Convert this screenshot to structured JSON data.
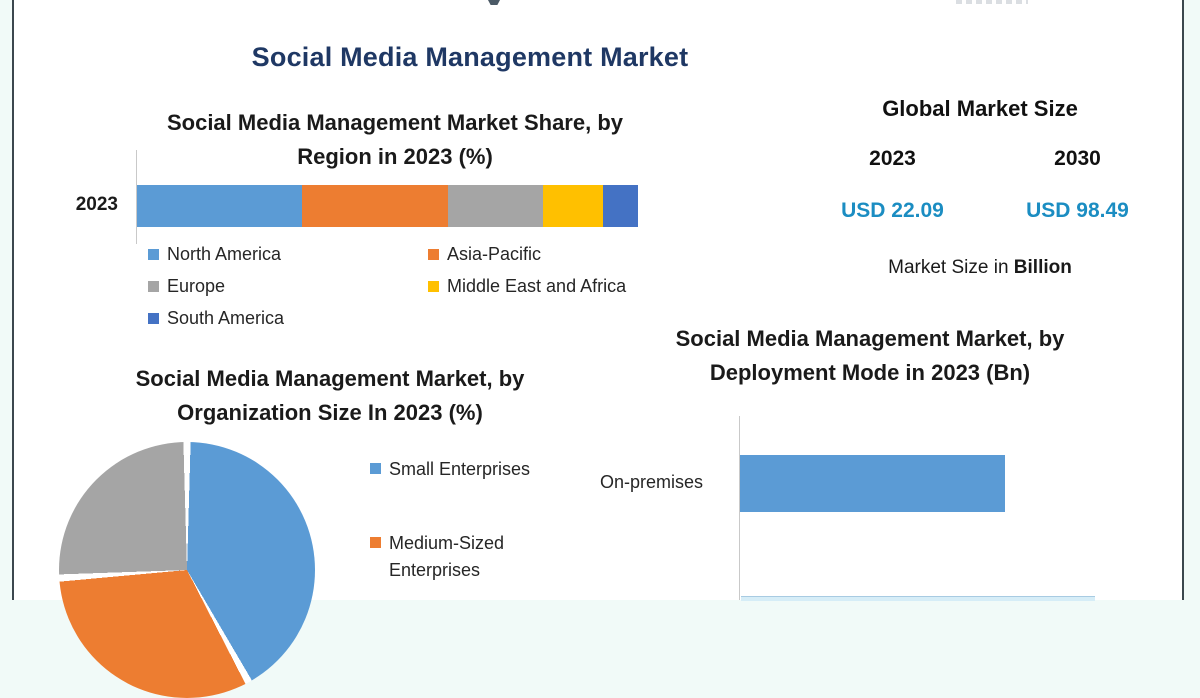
{
  "main_title": "Social Media Management Market",
  "colors": {
    "title_navy": "#1F3864",
    "value_teal": "#1b8dc2",
    "north_america_blue": "#5B9BD5",
    "asia_pacific_orange": "#ED7D31",
    "europe_gray": "#A5A5A5",
    "mea_yellow": "#FFC000",
    "south_america_blue": "#4472C4",
    "axis_gray": "#c9c9c9",
    "frame_border": "#3b474e"
  },
  "region_chart": {
    "title_line1": "Social Media Management Market Share, by",
    "title_line2": "Region in 2023 (%)",
    "category_label": "2023"
  },
  "market_panel": {
    "title": "Global Market Size",
    "years": [
      "2023",
      "2030"
    ],
    "values": [
      "USD 22.09",
      "USD 98.49"
    ],
    "note_text": "Market Size in ",
    "note_bold": "Billion"
  },
  "org_chart": {
    "title_line1": "Social Media Management Market, by",
    "title_line2": "Organization Size In 2023 (%)"
  },
  "deployment_chart": {
    "title_line1": "Social Media Management Market, by",
    "title_line2": "Deployment Mode in 2023 (Bn)",
    "bar_label": "On-premises"
  },
  "chart_data": [
    {
      "type": "bar",
      "subtype": "horizontal-stacked",
      "title": "Social Media Management Market Share, by Region in 2023 (%)",
      "categories": [
        "2023"
      ],
      "unit": "%",
      "legend_position": "bottom",
      "series": [
        {
          "name": "North America",
          "values": [
            33
          ],
          "color": "#5B9BD5"
        },
        {
          "name": "Asia-Pacific",
          "values": [
            29
          ],
          "color": "#ED7D31"
        },
        {
          "name": "Europe",
          "values": [
            19
          ],
          "color": "#A5A5A5"
        },
        {
          "name": "Middle East and Africa",
          "values": [
            12
          ],
          "color": "#FFC000"
        },
        {
          "name": "South America",
          "values": [
            7
          ],
          "color": "#4472C4"
        }
      ]
    },
    {
      "type": "pie",
      "title": "Social Media Management Market, by Organization Size In 2023 (%)",
      "start_angle_deg": 0,
      "legend_position": "right",
      "cropped_at_bottom": true,
      "slices": [
        {
          "name": "Small Enterprises",
          "value": 42,
          "color": "#5B9BD5"
        },
        {
          "name": "Medium-Sized Enterprises",
          "value": 32,
          "color": "#ED7D31"
        },
        {
          "name": "",
          "value": 26,
          "color": "#A5A5A5"
        }
      ]
    },
    {
      "type": "bar",
      "subtype": "horizontal",
      "title": "Social Media Management Market, by Deployment Mode in 2023 (Bn)",
      "categories": [
        "On-premises"
      ],
      "value_axis_visible": false,
      "bars": [
        {
          "label": "On-premises",
          "relative_length": 0.6,
          "color": "#5B9BD5"
        },
        {
          "label": "",
          "relative_length": 0.8,
          "color": "#d6edf7",
          "cropped_at_bottom": true
        }
      ]
    }
  ]
}
